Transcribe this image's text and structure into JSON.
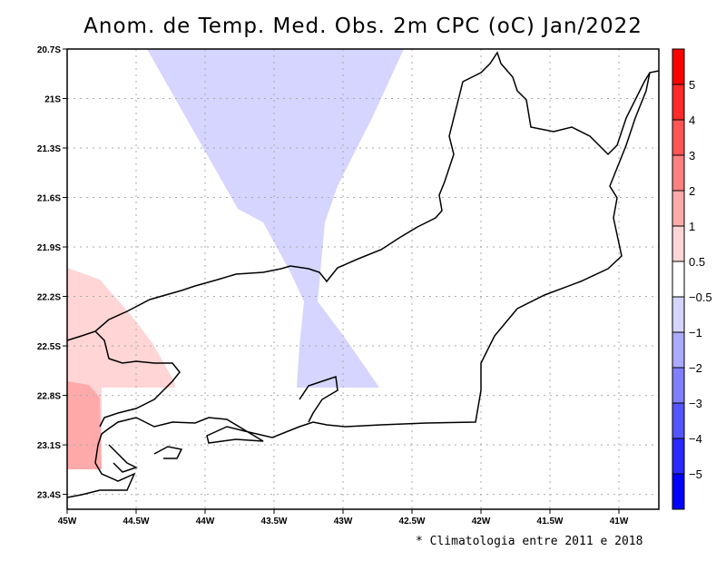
{
  "title": "Anom. de Temp. Med. Obs. 2m CPC (oC) Jan/2022",
  "note": "* Climatologia entre 2011 e 2018",
  "axes": {
    "lon_ticks": [
      "45W",
      "44.5W",
      "44W",
      "43.5W",
      "43W",
      "42.5W",
      "42W",
      "41.5W",
      "41W"
    ],
    "lat_ticks": [
      "20.7S",
      "21S",
      "21.3S",
      "21.6S",
      "21.9S",
      "22.2S",
      "22.5S",
      "22.8S",
      "23.1S",
      "23.4S"
    ],
    "lon_range": [
      -45,
      -40.7
    ],
    "lat_range": [
      -20.7,
      -23.5
    ]
  },
  "colorbar": {
    "labels": [
      "5",
      "4",
      "3",
      "2",
      "1",
      "0.5",
      "−0.5",
      "−1",
      "−2",
      "−3",
      "−4",
      "−5"
    ],
    "colors": [
      "#ff0000",
      "#ff2a2a",
      "#ff5555",
      "#ff8080",
      "#ffaaaa",
      "#ffd5d5",
      "#ffffff",
      "#d5d5ff",
      "#aaaaff",
      "#8080ff",
      "#5555ff",
      "#2a2aff",
      "#0000ff"
    ]
  },
  "shaded_regions": [
    {
      "name": "negative-anomaly",
      "range": "-1 to -0.5",
      "color": "#d5d5ff"
    },
    {
      "name": "positive-anomaly",
      "range": "0.5 to 1",
      "color": "#ffd5d5"
    },
    {
      "name": "positive-anomaly-strong",
      "range": "1 to 2",
      "color": "#ffaaaa"
    }
  ]
}
